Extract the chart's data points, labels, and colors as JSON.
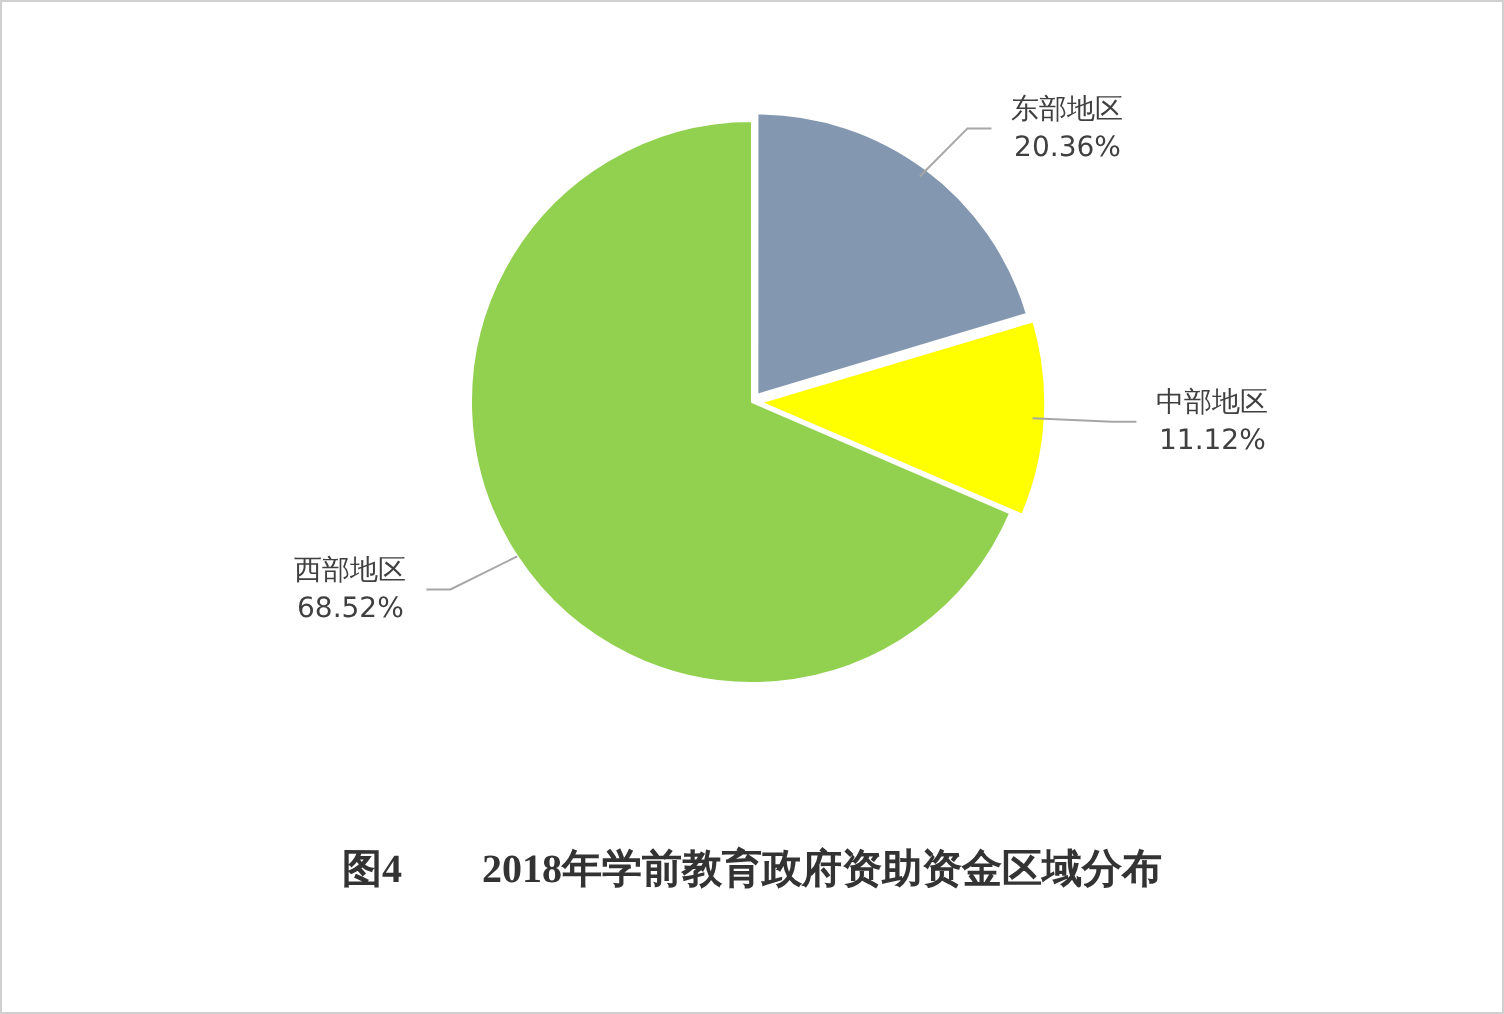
{
  "chart_data": {
    "type": "pie",
    "title": "图4　　2018年学前教育政府资助资金区域分布",
    "categories": [
      "东部地区",
      "中部地区",
      "西部地区"
    ],
    "values": [
      20.36,
      11.12,
      68.52
    ],
    "colors": [
      "#8497b0",
      "#ffff00",
      "#92d050"
    ],
    "value_labels": [
      "20.36%",
      "11.12%",
      "68.52%"
    ],
    "legend": false
  }
}
